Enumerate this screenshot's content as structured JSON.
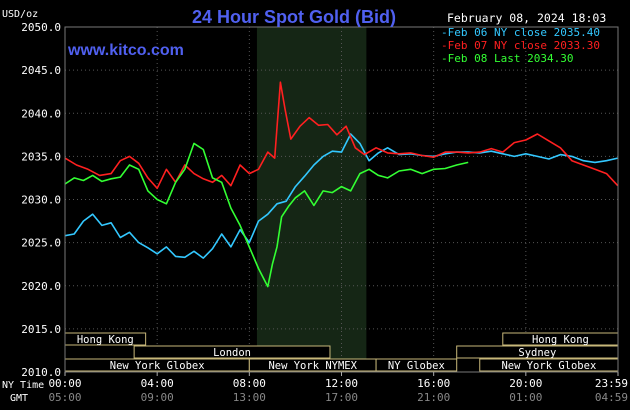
{
  "chart_data": {
    "type": "line",
    "title": "24 Hour Spot Gold (Bid)",
    "ylabel": "USD/oz",
    "website": "www.kitco.com",
    "timestamp": "February 08, 2024 18:03",
    "ylim": [
      2010,
      2050
    ],
    "yticks": [
      "2050.0",
      "2045.0",
      "2040.0",
      "2035.0",
      "2030.0",
      "2025.0",
      "2020.0",
      "2015.0",
      "2010.0"
    ],
    "ytick_values": [
      2050,
      2045,
      2040,
      2035,
      2030,
      2025,
      2020,
      2015,
      2010
    ],
    "x_hours": [
      0,
      4,
      8,
      12,
      16,
      20,
      24
    ],
    "ny_time_label": "NY Time",
    "gmt_label": "GMT",
    "ny_ticks": [
      "00:00",
      "04:00",
      "08:00",
      "12:00",
      "16:00",
      "20:00",
      "23:59"
    ],
    "gmt_ticks": [
      "05:00",
      "09:00",
      "13:00",
      "17:00",
      "21:00",
      "01:00",
      "04:59"
    ],
    "grid": true,
    "legend_position": "top-right",
    "shaded_session_hours": [
      8.33,
      13.08
    ],
    "series": [
      {
        "name": "Feb 06 NY close 2035.40",
        "color": "#33c8ff",
        "x": [
          0,
          0.4,
          0.8,
          1.2,
          1.6,
          2.0,
          2.4,
          2.8,
          3.2,
          3.6,
          4.0,
          4.4,
          4.8,
          5.2,
          5.6,
          6.0,
          6.4,
          6.8,
          7.2,
          7.6,
          8.0,
          8.4,
          8.8,
          9.2,
          9.6,
          10.0,
          10.4,
          10.8,
          11.2,
          11.6,
          12.0,
          12.4,
          12.8,
          13.2,
          13.6,
          14.0,
          14.5,
          15.0,
          15.5,
          16.0,
          16.5,
          17.0,
          17.5,
          18.0,
          18.5,
          19.0,
          19.5,
          20.0,
          20.5,
          21.0,
          21.5,
          22.0,
          22.5,
          23.0,
          23.5,
          23.99
        ],
        "values": [
          2025.8,
          2026.0,
          2027.5,
          2028.3,
          2027.0,
          2027.3,
          2025.6,
          2026.2,
          2025.0,
          2024.4,
          2023.7,
          2024.5,
          2023.4,
          2023.3,
          2024.0,
          2023.2,
          2024.3,
          2026.0,
          2024.5,
          2026.5,
          2025.0,
          2027.5,
          2028.3,
          2029.5,
          2029.8,
          2031.5,
          2032.7,
          2034.0,
          2035.0,
          2035.6,
          2035.5,
          2037.6,
          2036.5,
          2034.5,
          2035.4,
          2036.0,
          2035.2,
          2035.3,
          2035.1,
          2035.0,
          2035.3,
          2035.5,
          2035.5,
          2035.4,
          2035.6,
          2035.3,
          2035.0,
          2035.3,
          2035.0,
          2034.7,
          2035.2,
          2035.0,
          2034.5,
          2034.3,
          2034.5,
          2034.8
        ]
      },
      {
        "name": "Feb 07 NY close 2033.30",
        "color": "#ff2020",
        "x": [
          0,
          0.5,
          1.0,
          1.5,
          2.0,
          2.4,
          2.8,
          3.2,
          3.6,
          4.0,
          4.4,
          4.8,
          5.2,
          5.6,
          6.0,
          6.4,
          6.8,
          7.2,
          7.6,
          8.0,
          8.4,
          8.8,
          9.1,
          9.35,
          9.55,
          9.8,
          10.2,
          10.6,
          11.0,
          11.4,
          11.8,
          12.2,
          12.6,
          13.0,
          13.5,
          14.0,
          14.5,
          15.0,
          15.5,
          16.0,
          16.5,
          17.0,
          17.5,
          18.0,
          18.5,
          19.0,
          19.5,
          20.0,
          20.5,
          21.0,
          21.5,
          22.0,
          22.5,
          23.0,
          23.5,
          23.99
        ],
        "values": [
          2034.8,
          2034.0,
          2033.5,
          2032.8,
          2033.0,
          2034.5,
          2035.0,
          2034.2,
          2032.5,
          2031.3,
          2033.5,
          2032.0,
          2034.0,
          2033.0,
          2032.4,
          2032.0,
          2032.8,
          2031.6,
          2034.0,
          2033.0,
          2033.5,
          2035.5,
          2034.8,
          2043.6,
          2040.5,
          2037.0,
          2038.5,
          2039.5,
          2038.6,
          2038.7,
          2037.5,
          2038.5,
          2036.0,
          2035.2,
          2036.0,
          2035.4,
          2035.3,
          2035.4,
          2035.1,
          2034.9,
          2035.5,
          2035.5,
          2035.4,
          2035.5,
          2035.9,
          2035.5,
          2036.6,
          2036.9,
          2037.6,
          2036.8,
          2036.0,
          2034.5,
          2034.0,
          2033.5,
          2033.0,
          2031.6
        ]
      },
      {
        "name": "Feb 08 Last 2034.30",
        "color": "#33ff33",
        "x": [
          0,
          0.4,
          0.8,
          1.2,
          1.6,
          2.0,
          2.4,
          2.8,
          3.2,
          3.6,
          4.0,
          4.4,
          4.8,
          5.2,
          5.6,
          6.0,
          6.4,
          6.8,
          7.2,
          7.6,
          8.0,
          8.4,
          8.8,
          9.0,
          9.2,
          9.4,
          9.7,
          10.0,
          10.4,
          10.8,
          11.2,
          11.6,
          12.0,
          12.4,
          12.8,
          13.2,
          13.6,
          14.0,
          14.5,
          15.0,
          15.5,
          16.0,
          16.5,
          17.0,
          17.5
        ],
        "values": [
          2031.8,
          2032.5,
          2032.2,
          2032.8,
          2032.1,
          2032.4,
          2032.6,
          2034.0,
          2033.5,
          2031.0,
          2030.0,
          2029.5,
          2032.0,
          2033.5,
          2036.5,
          2035.8,
          2032.5,
          2032.0,
          2029.0,
          2027.0,
          2024.5,
          2022.0,
          2019.9,
          2022.5,
          2024.5,
          2028.0,
          2029.2,
          2030.2,
          2031.0,
          2029.3,
          2031.0,
          2030.8,
          2031.5,
          2031.0,
          2033.0,
          2033.5,
          2032.8,
          2032.5,
          2033.3,
          2033.5,
          2033.0,
          2033.5,
          2033.6,
          2034.0,
          2034.3
        ]
      }
    ],
    "sessions": [
      {
        "name": "Hong Kong",
        "start": 0,
        "end": 3.5,
        "row": 0
      },
      {
        "name": "Hong Kong",
        "start": 19.0,
        "end": 24,
        "row": 0
      },
      {
        "name": "London",
        "start": 3.0,
        "end": 11.5,
        "row": 1
      },
      {
        "name": "Sydney",
        "start": 17.0,
        "end": 24,
        "row": 1
      },
      {
        "name": "New York Globex",
        "start": 0,
        "end": 8.0,
        "row": 2
      },
      {
        "name": "New York NYMEX",
        "start": 8.0,
        "end": 13.5,
        "row": 2
      },
      {
        "name": "NY Globex",
        "start": 13.5,
        "end": 17.0,
        "row": 2
      },
      {
        "name": "New York Globex",
        "start": 18.0,
        "end": 24,
        "row": 2
      }
    ]
  }
}
